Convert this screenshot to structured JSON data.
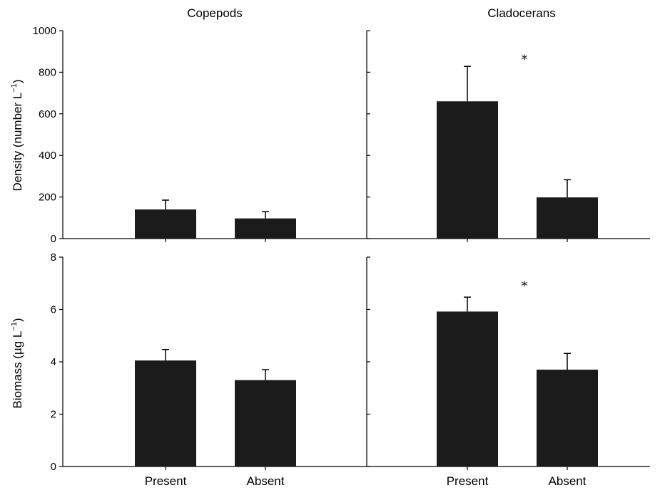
{
  "chart_data": {
    "type": "bar",
    "columns": [
      "Copepods",
      "Cladocerans"
    ],
    "categories": [
      "Present",
      "Absent"
    ],
    "rows": [
      {
        "id": "density",
        "ylabel": {
          "main": "Density (number L",
          "sup": "−1",
          "close": ")"
        },
        "ylim": [
          0,
          1000
        ],
        "yticks": [
          "0",
          "200",
          "400",
          "600",
          "800",
          "1000"
        ],
        "panels": [
          {
            "group": "Copepods",
            "values": [
              140,
              97
            ],
            "errors": [
              45,
              33
            ],
            "significance": ""
          },
          {
            "group": "Cladocerans",
            "values": [
              660,
              198
            ],
            "errors": [
              168,
              85
            ],
            "significance": "*"
          }
        ]
      },
      {
        "id": "biomass",
        "ylabel": {
          "main": "Biomass (µg L",
          "sup": "−1",
          "close": ")"
        },
        "ylim": [
          0,
          8
        ],
        "yticks": [
          "0",
          "2",
          "4",
          "6",
          "8"
        ],
        "panels": [
          {
            "group": "Copepods",
            "values": [
              4.05,
              3.3
            ],
            "errors": [
              0.42,
              0.4
            ],
            "significance": ""
          },
          {
            "group": "Cladocerans",
            "values": [
              5.92,
              3.7
            ],
            "errors": [
              0.55,
              0.62
            ],
            "significance": "*"
          }
        ]
      }
    ]
  }
}
